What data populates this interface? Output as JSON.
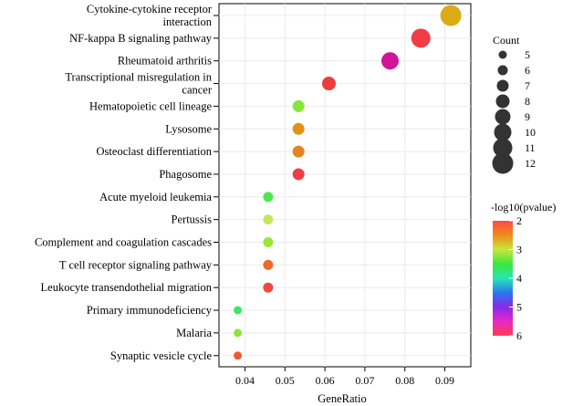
{
  "chart_data": {
    "type": "scatter",
    "title": "",
    "xlabel": "GeneRatio",
    "ylabel": "",
    "xlim": [
      0.0335,
      0.0965
    ],
    "xticks": [
      0.04,
      0.05,
      0.06,
      0.07,
      0.08,
      0.09
    ],
    "xtick_labels": [
      "0.04",
      "0.05",
      "0.06",
      "0.07",
      "0.08",
      "0.09"
    ],
    "grid": true,
    "points": [
      {
        "category": "Cytokine-cytokine receptor interaction",
        "x": 0.0915,
        "count": 12,
        "pvalue_log10": 2.7
      },
      {
        "category": "NF-kappa B signaling pathway",
        "x": 0.084,
        "count": 11,
        "pvalue_log10": 2.1
      },
      {
        "category": "Rheumatoid arthritis",
        "x": 0.0763,
        "count": 10,
        "pvalue_log10": 5.6
      },
      {
        "category": "Transcriptional misregulation in cancer",
        "x": 0.061,
        "count": 8,
        "pvalue_log10": 2.1
      },
      {
        "category": "Hematopoietic cell lineage",
        "x": 0.0534,
        "count": 7,
        "pvalue_log10": 3.1
      },
      {
        "category": "Lysosome",
        "x": 0.0534,
        "count": 7,
        "pvalue_log10": 2.6
      },
      {
        "category": "Osteoclast differentiation",
        "x": 0.0534,
        "count": 7,
        "pvalue_log10": 2.5
      },
      {
        "category": "Phagosome",
        "x": 0.0534,
        "count": 7,
        "pvalue_log10": 2.2
      },
      {
        "category": "Acute myeloid leukemia",
        "x": 0.0458,
        "count": 6,
        "pvalue_log10": 3.5
      },
      {
        "category": "Pertussis",
        "x": 0.0458,
        "count": 6,
        "pvalue_log10": 3.0
      },
      {
        "category": "Complement and coagulation cascades",
        "x": 0.0458,
        "count": 6,
        "pvalue_log10": 3.1
      },
      {
        "category": "T cell receptor signaling pathway",
        "x": 0.0458,
        "count": 6,
        "pvalue_log10": 2.4
      },
      {
        "category": "Leukocyte transendothelial migration",
        "x": 0.0458,
        "count": 6,
        "pvalue_log10": 2.2
      },
      {
        "category": "Primary immunodeficiency",
        "x": 0.0382,
        "count": 5,
        "pvalue_log10": 3.7
      },
      {
        "category": "Malaria",
        "x": 0.0382,
        "count": 5,
        "pvalue_log10": 3.2
      },
      {
        "category": "Synaptic vesicle cycle",
        "x": 0.0382,
        "count": 5,
        "pvalue_log10": 2.3
      }
    ],
    "legend_size": {
      "title": "Count",
      "values": [
        5,
        6,
        7,
        8,
        9,
        10,
        11,
        12
      ],
      "labels": [
        "5",
        "6",
        "7",
        "8",
        "9",
        "10",
        "11",
        "12"
      ]
    },
    "legend_color": {
      "title": "-log10(pvalue)",
      "range": [
        2,
        6
      ],
      "ticks": [
        2,
        3,
        4,
        5,
        6
      ],
      "tick_labels": [
        "2",
        "3",
        "4",
        "5",
        "6"
      ],
      "stops": [
        {
          "v": 2.0,
          "color": "#ff4848"
        },
        {
          "v": 2.5,
          "color": "#ef8c1a"
        },
        {
          "v": 3.0,
          "color": "#c8e640"
        },
        {
          "v": 3.5,
          "color": "#3ce63c"
        },
        {
          "v": 4.0,
          "color": "#28e6b4"
        },
        {
          "v": 4.5,
          "color": "#2878f0"
        },
        {
          "v": 5.0,
          "color": "#8c28e6"
        },
        {
          "v": 5.5,
          "color": "#e628c8"
        },
        {
          "v": 6.0,
          "color": "#ff3c50"
        }
      ]
    },
    "point_colors": [
      "#dcaa14",
      "#f23c46",
      "#d2149b",
      "#ee3c3c",
      "#88e63a",
      "#e19118",
      "#e38422",
      "#ee3e46",
      "#50e650",
      "#c8e65a",
      "#9be634",
      "#ee6a2a",
      "#ee4a3c",
      "#3ce664",
      "#8ce63c",
      "#ef5a32"
    ]
  }
}
